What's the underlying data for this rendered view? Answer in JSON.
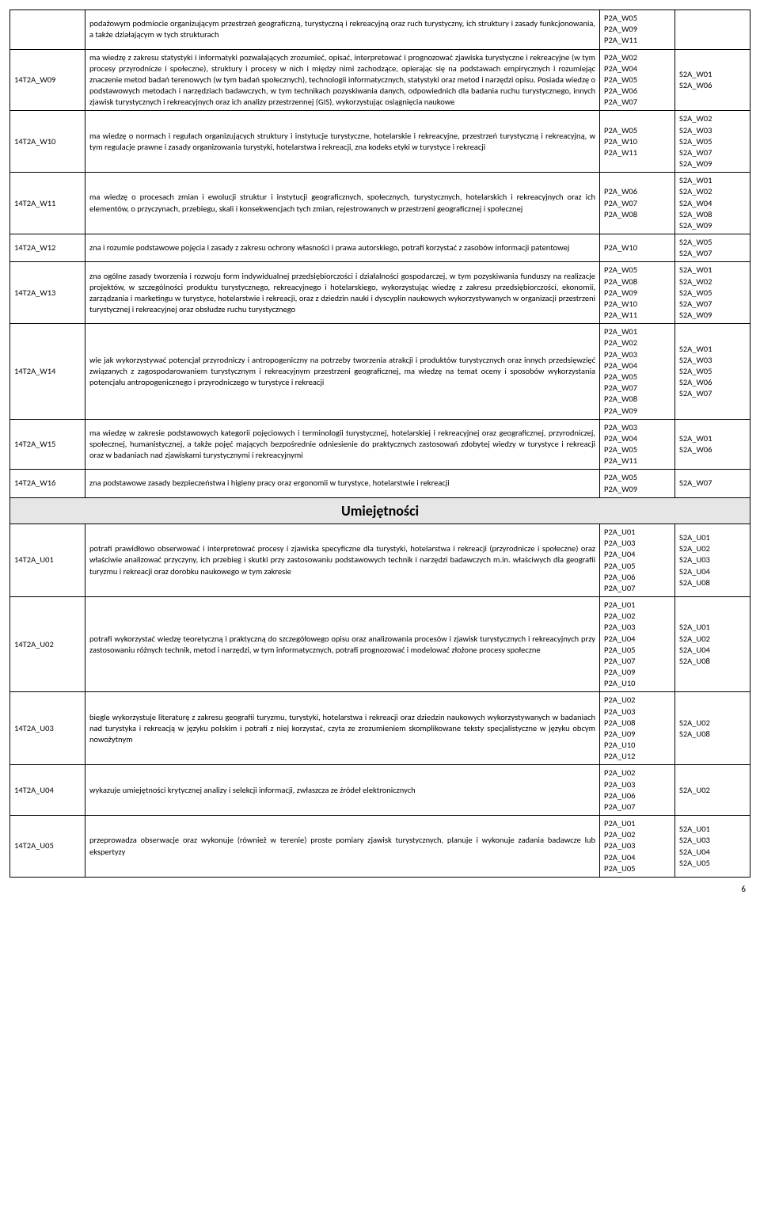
{
  "rows": [
    {
      "code": "",
      "desc": "podażowym podmiocie organizującym przestrzeń geograficzną, turystyczną i rekreacyjną oraz ruch turystyczny, ich struktury i zasady funkcjonowania, a także działającym w tych strukturach",
      "p2a": "P2A_W05\nP2A_W09\nP2A_W11",
      "s2a": "",
      "split_s2a": true
    },
    {
      "code": "14T2A_W09",
      "desc": "ma wiedzę z zakresu statystyki i informatyki pozwalających zrozumieć, opisać, interpretować i prognozować zjawiska turystyczne i rekreacyjne (w tym procesy przyrodnicze i społeczne), struktury i procesy w nich i między nimi zachodzące, opierając się na podstawach empirycznych i rozumiejąc znaczenie metod badań terenowych (w tym badań społecznych), technologii informatycznych, statystyki oraz metod i narzędzi opisu. Posiada wiedzę o podstawowych metodach i narzędziach badawczych, w tym technikach pozyskiwania danych, odpowiednich dla badania ruchu turystycznego, innych zjawisk turystycznych i rekreacyjnych oraz ich analizy przestrzennej (GIS), wykorzystując osiągnięcia naukowe",
      "p2a": "P2A_W02\nP2A_W04\nP2A_W05\nP2A_W06\nP2A_W07",
      "s2a": "S2A_W01\nS2A_W06"
    },
    {
      "code": "14T2A_W10",
      "desc": "ma wiedzę o normach i regułach organizujących struktury i instytucje turystyczne, hotelarskie i rekreacyjne, przestrzeń turystyczną i rekreacyjną, w tym regulacje prawne i zasady organizowania turystyki, hotelarstwa i rekreacji, zna kodeks etyki w turystyce i rekreacji",
      "p2a": "P2A_W05\nP2A_W10\nP2A_W11",
      "s2a": "S2A_W02\nS2A_W03\nS2A_W05\nS2A_W07\nS2A_W09"
    },
    {
      "code": "14T2A_W11",
      "desc": "ma wiedzę o procesach zmian i ewolucji struktur i instytucji geograficznych, społecznych, turystycznych, hotelarskich i rekreacyjnych oraz ich elementów, o przyczynach, przebiegu, skali i konsekwencjach tych zmian, rejestrowanych w przestrzeni geograficznej i społecznej",
      "p2a": "P2A_W06\nP2A_W07\nP2A_W08",
      "s2a": "S2A_W01\nS2A_W02\nS2A_W04\nS2A_W08\nS2A_W09"
    },
    {
      "code": "14T2A_W12",
      "desc": "zna i rozumie podstawowe pojęcia i zasady z zakresu ochrony własności i prawa autorskiego, potrafi korzystać z zasobów informacji patentowej",
      "p2a": "P2A_W10",
      "s2a": "S2A_W05\nS2A_W07"
    },
    {
      "code": "14T2A_W13",
      "desc": "zna ogólne zasady tworzenia i rozwoju form indywidualnej przedsiębiorczości i działalności gospodarczej, w tym pozyskiwania funduszy na realizacje projektów, w szczególności produktu turystycznego, rekreacyjnego i hotelarskiego, wykorzystując wiedzę z zakresu przedsiębiorczości, ekonomii, zarządzania i marketingu w turystyce, hotelarstwie i rekreacji, oraz z dziedzin nauki i dyscyplin naukowych wykorzystywanych w organizacji przestrzeni turystycznej i rekreacyjnej oraz obsłudze ruchu turystycznego",
      "p2a": "P2A_W05\nP2A_W08\nP2A_W09\nP2A_W10\nP2A_W11",
      "s2a": "S2A_W01\nS2A_W02\nS2A_W05\nS2A_W07\nS2A_W09"
    },
    {
      "code": "14T2A_W14",
      "desc": "wie jak wykorzystywać potencjał przyrodniczy i antropogeniczny na potrzeby tworzenia atrakcji i produktów turystycznych oraz innych przedsięwzięć związanych z zagospodarowaniem turystycznym i rekreacyjnym przestrzeni geograficznej, ma wiedzę na temat oceny i sposobów wykorzystania potencjału antropogenicznego i przyrodniczego w turystyce i rekreacji",
      "p2a": "P2A_W01\nP2A_W02\nP2A_W03\nP2A_W04\nP2A_W05\nP2A_W07\nP2A_W08\nP2A_W09",
      "s2a": "S2A_W01\nS2A_W03\nS2A_W05\nS2A_W06\nS2A_W07"
    },
    {
      "code": "14T2A_W15",
      "desc": "ma wiedzę w zakresie podstawowych kategorii pojęciowych i terminologii turystycznej, hotelarskiej i rekreacyjnej oraz geograficznej, przyrodniczej, społecznej, humanistycznej, a także pojęć mających bezpośrednie odniesienie do praktycznych zastosowań zdobytej wiedzy w turystyce i rekreacji oraz w badaniach nad zjawiskami turystycznymi i rekreacyjnymi",
      "p2a": "P2A_W03\nP2A_W04\nP2A_W05\nP2A_W11",
      "s2a": "S2A_W01\nS2A_W06"
    },
    {
      "code": "14T2A_W16",
      "desc": "zna podstawowe zasady bezpieczeństwa i higieny pracy oraz ergonomii w turystyce, hotelarstwie i rekreacji",
      "p2a": "P2A_W05\nP2A_W09",
      "s2a": "S2A_W07"
    }
  ],
  "section_title": "Umiejętności",
  "rows2": [
    {
      "code": "14T2A_U01",
      "desc": "potrafi prawidłowo obserwować i interpretować procesy i zjawiska specyficzne dla turystyki, hotelarstwa i rekreacji (przyrodnicze i społeczne) oraz właściwie analizować przyczyny, ich przebieg i skutki przy zastosowaniu podstawowych technik i narzędzi badawczych m.in. właściwych dla geografii turyzmu i rekreacji oraz dorobku naukowego w tym zakresie",
      "p2a": "P2A_U01\nP2A_U03\nP2A_U04\nP2A_U05\nP2A_U06\nP2A_U07",
      "s2a": "S2A_U01\nS2A_U02\nS2A_U03\nS2A_U04\nS2A_U08"
    },
    {
      "code": "14T2A_U02",
      "desc": "potrafi wykorzystać wiedzę teoretyczną i praktyczną do szczegółowego opisu oraz analizowania procesów i zjawisk turystycznych i rekreacyjnych przy zastosowaniu różnych technik, metod i narzędzi, w tym informatycznych, potrafi prognozować i modelować złożone procesy społeczne",
      "p2a": "P2A_U01\nP2A_U02\nP2A_U03\nP2A_U04\nP2A_U05\nP2A_U07\nP2A_U09\nP2A_U10",
      "s2a": "S2A_U01\nS2A_U02\nS2A_U04\nS2A_U08"
    },
    {
      "code": "14T2A_U03",
      "desc": "biegle wykorzystuje literaturę z zakresu geografii turyzmu, turystyki, hotelarstwa i rekreacji oraz dziedzin naukowych wykorzystywanych w badaniach nad turystyka i rekreacją w języku polskim i potrafi z niej korzystać, czyta ze zrozumieniem skomplikowane teksty specjalistyczne w języku obcym nowożytnym",
      "p2a": "P2A_U02\nP2A_U03\nP2A_U08\nP2A_U09\nP2A_U10\nP2A_U12",
      "s2a": "S2A_U02\nS2A_U08"
    },
    {
      "code": "14T2A_U04",
      "desc": "wykazuje umiejętności krytycznej analizy i selekcji informacji, zwłaszcza ze źródeł elektronicznych",
      "p2a": "P2A_U02\nP2A_U03\nP2A_U06\nP2A_U07",
      "s2a": "S2A_U02"
    },
    {
      "code": "14T2A_U05",
      "desc": "przeprowadza obserwacje oraz wykonuje (również w terenie) proste pomiary zjawisk turystycznych, planuje i wykonuje zadania badawcze lub ekspertyzy",
      "p2a": "P2A_U01\nP2A_U02\nP2A_U03\nP2A_U04\nP2A_U05",
      "s2a": "S2A_U01\nS2A_U03\nS2A_U04\nS2A_U05"
    }
  ],
  "page_number": "6"
}
